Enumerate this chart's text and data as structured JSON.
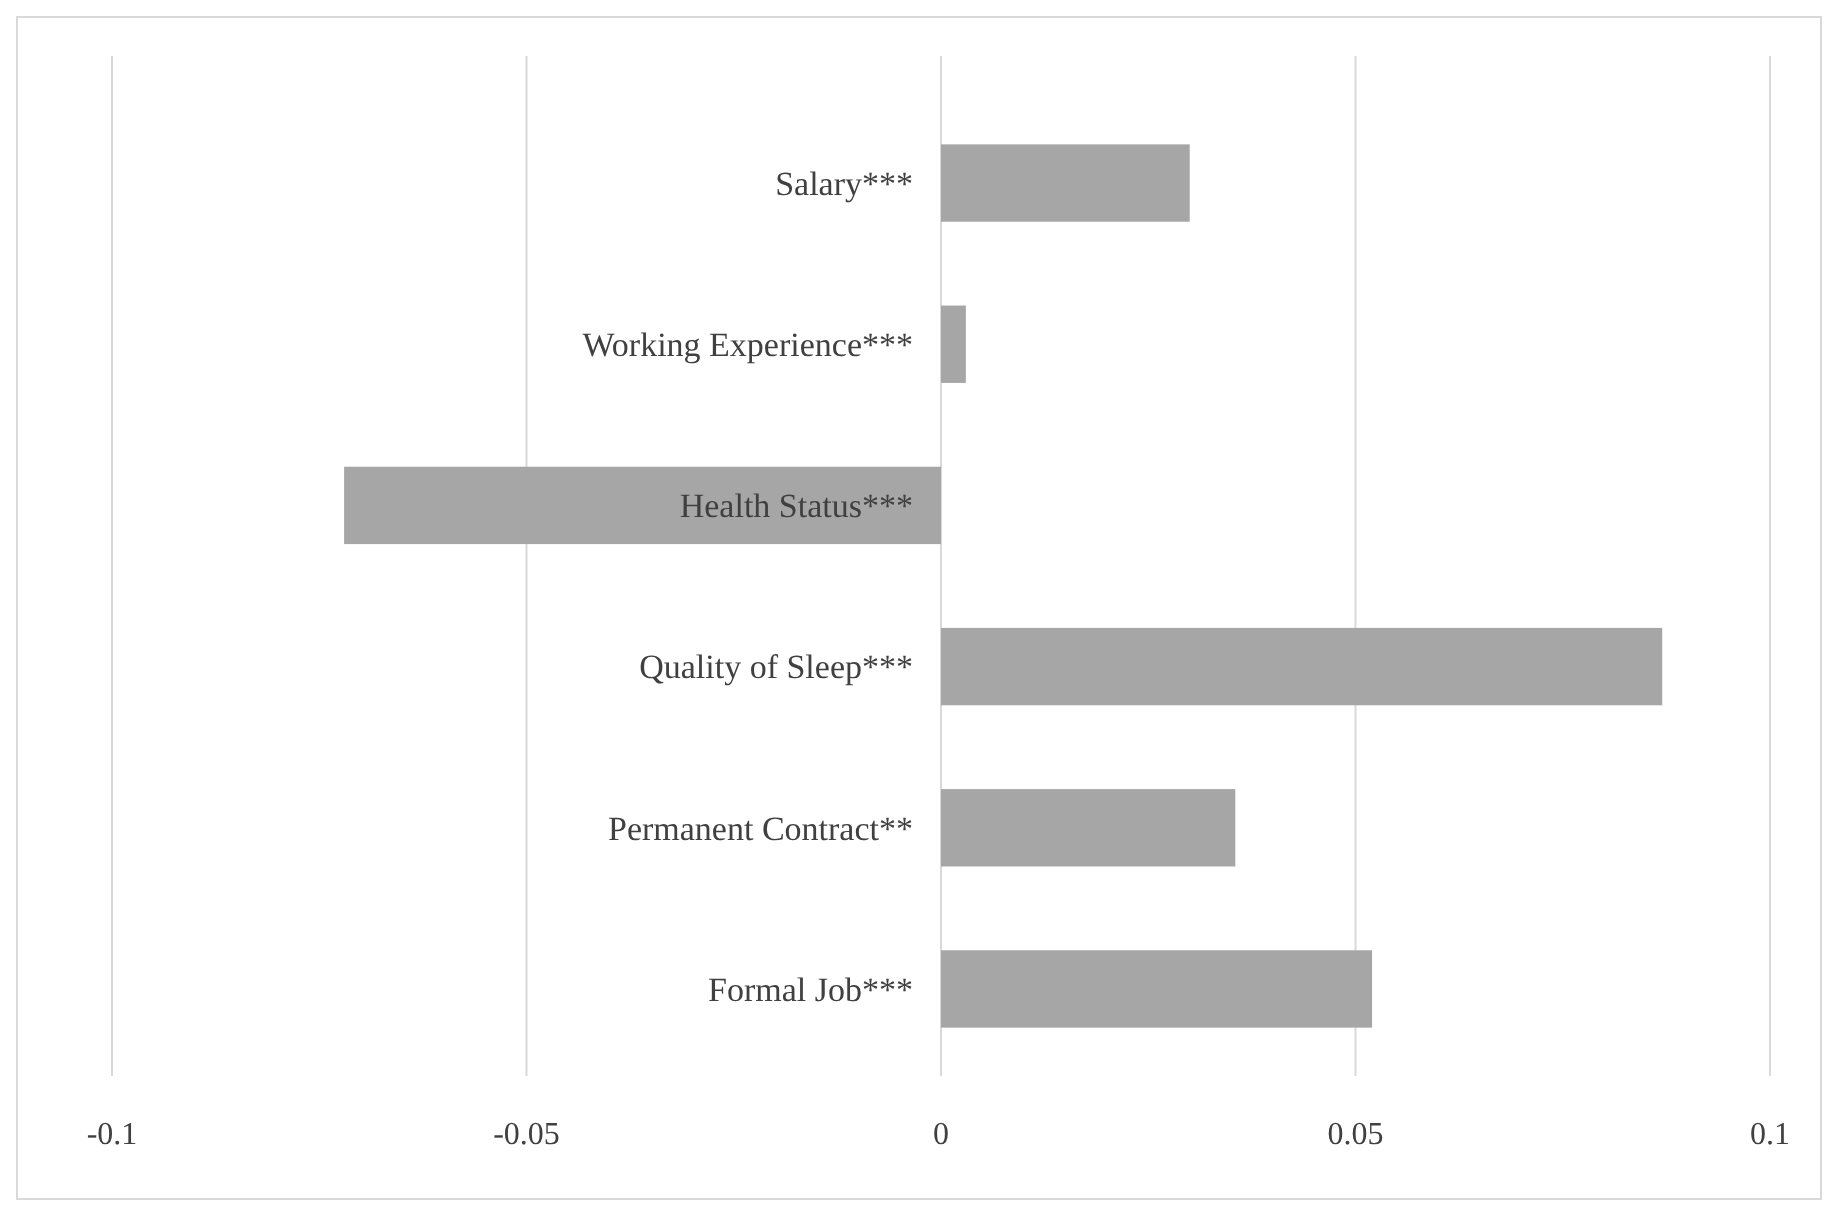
{
  "chart_data": {
    "type": "bar",
    "orientation": "horizontal",
    "categories": [
      "Salary***",
      "Working Experience***",
      "Health Status***",
      "Quality of Sleep***",
      "Permanent Contract**",
      "Formal Job***"
    ],
    "values": [
      0.03,
      0.003,
      -0.072,
      0.087,
      0.0355,
      0.052
    ],
    "color": "#a6a6a6",
    "xlim": [
      -0.1,
      0.1
    ],
    "xticks": [
      -0.1,
      -0.05,
      0,
      0.05,
      0.1
    ],
    "grid": "x"
  }
}
